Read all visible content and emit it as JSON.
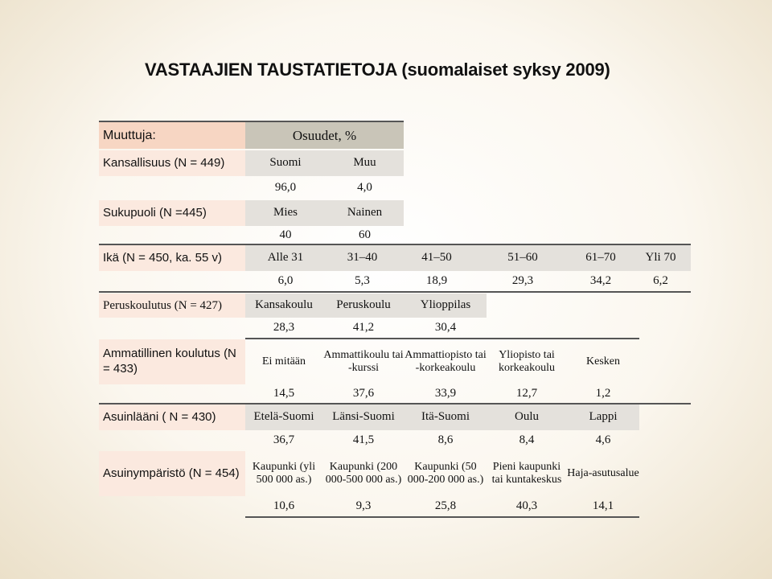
{
  "title": "VASTAAJIEN TAUSTATIETOJA (suomalaiset syksy 2009)",
  "header": {
    "variables": "Muuttuja:",
    "shares": "Osuudet, %"
  },
  "nationality": {
    "label": "Kansallisuus (N = 449)",
    "categories": [
      "Suomi",
      "Muu"
    ],
    "values": [
      "96,0",
      "4,0"
    ]
  },
  "gender": {
    "label": "Sukupuoli (N =445)",
    "categories": [
      "Mies",
      "Nainen"
    ],
    "values": [
      "40",
      "60"
    ]
  },
  "age": {
    "label": "Ikä (N = 450, ka. 55 v)",
    "categories": [
      "Alle 31",
      "31–40",
      "41–50",
      "51–60",
      "61–70",
      "Yli 70"
    ],
    "values": [
      "6,0",
      "5,3",
      "18,9",
      "29,3",
      "34,2",
      "6,2"
    ]
  },
  "basic_education": {
    "label": "Peruskoulutus (N = 427)",
    "categories": [
      "Kansakoulu",
      "Peruskoulu",
      "Ylioppilas"
    ],
    "values": [
      "28,3",
      "41,2",
      "30,4"
    ]
  },
  "vocational": {
    "label": "Ammatillinen koulutus (N = 433)",
    "categories": [
      "Ei mitään",
      "Ammattikoulu tai -kurssi",
      "Ammattiopisto tai -korkeakoulu",
      "Yliopisto tai korkeakoulu",
      "Kesken"
    ],
    "values": [
      "14,5",
      "37,6",
      "33,9",
      "12,7",
      "1,2"
    ]
  },
  "region": {
    "label": "Asuinlääni ( N = 430)",
    "categories": [
      "Etelä-Suomi",
      "Länsi-Suomi",
      "Itä-Suomi",
      "Oulu",
      "Lappi"
    ],
    "values": [
      "36,7",
      "41,5",
      "8,6",
      "8,4",
      "4,6"
    ]
  },
  "environment": {
    "label": "Asuinympäristö (N = 454)",
    "categories": [
      "Kaupunki (yli 500 000 as.)",
      "Kaupunki (200 000-500 000 as.)",
      "Kaupunki (50 000-200 000 as.)",
      "Pieni kaupunki tai kuntakeskus",
      "Haja-asutusalue"
    ],
    "values": [
      "10,6",
      "9,3",
      "25,8",
      "40,3",
      "14,1"
    ]
  },
  "colors": {
    "header_left": "#f7d6c3",
    "header_right": "#c9c5b8",
    "row_peach": "#fbe9df",
    "row_grey": "#e4e1dc"
  }
}
